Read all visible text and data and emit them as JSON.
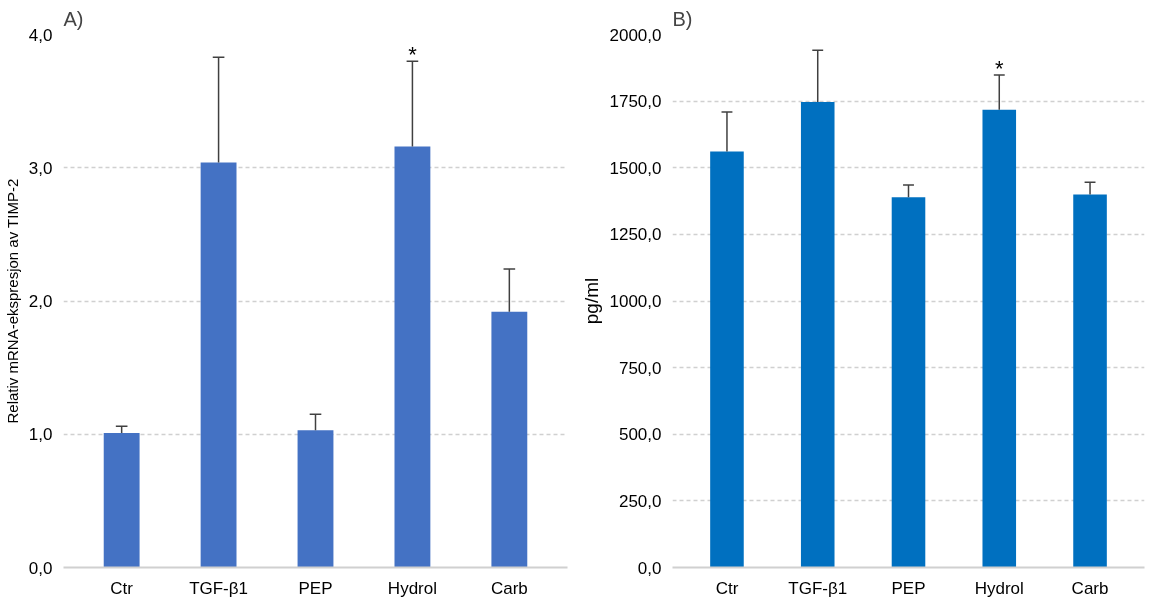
{
  "chart_data": [
    {
      "type": "bar",
      "title": "A)",
      "ylabel": "Relativ mRNA-ekspresjon av TIMP-2",
      "categories": [
        "Ctr",
        "TGF-β1",
        "PEP",
        "Hydrol",
        "Carb"
      ],
      "series": [
        {
          "color": "#4472c4",
          "values": [
            1.01,
            3.04,
            1.03,
            3.16,
            1.92
          ],
          "errors": [
            [
              1.01,
              1.06
            ],
            [
              3.04,
              3.83
            ],
            [
              1.03,
              1.15
            ],
            [
              3.16,
              3.8
            ],
            [
              1.92,
              2.24
            ]
          ]
        }
      ],
      "ylim": [
        0,
        4
      ],
      "yticks": [
        {
          "value": 0,
          "label": "0,0"
        },
        {
          "value": 1,
          "label": "1,0"
        },
        {
          "value": 2,
          "label": "2,0"
        },
        {
          "value": 3,
          "label": "3,0"
        },
        {
          "value": 4,
          "label": "4,0"
        }
      ],
      "annotations": [
        {
          "text": "*",
          "x": "Hydrol",
          "y": 3.8
        }
      ],
      "grid": "y"
    },
    {
      "type": "bar",
      "title": "B)",
      "ylabel": "pg/ml",
      "categories": [
        "Ctr",
        "TGF-β1",
        "PEP",
        "Hydrol",
        "Carb"
      ],
      "series": [
        {
          "color": "#0070c0",
          "values": [
            1561,
            1747,
            1389,
            1718,
            1400
          ],
          "errors": [
            [
              1561,
              1709
            ],
            [
              1747,
              1941
            ],
            [
              1389,
              1435
            ],
            [
              1718,
              1848
            ],
            [
              1400,
              1446
            ]
          ]
        }
      ],
      "ylim": [
        0,
        2000
      ],
      "yticks": [
        {
          "value": 0,
          "label": "0,0"
        },
        {
          "value": 250,
          "label": "250,0"
        },
        {
          "value": 500,
          "label": "500,0"
        },
        {
          "value": 750,
          "label": "750,0"
        },
        {
          "value": 1000,
          "label": "1000,0"
        },
        {
          "value": 1250,
          "label": "1250,0"
        },
        {
          "value": 1500,
          "label": "1500,0"
        },
        {
          "value": 1750,
          "label": "1750,0"
        },
        {
          "value": 2000,
          "label": "2000,0"
        }
      ],
      "annotations": [
        {
          "text": "*",
          "x": "Hydrol",
          "y": 1848
        }
      ],
      "grid": "y"
    }
  ]
}
